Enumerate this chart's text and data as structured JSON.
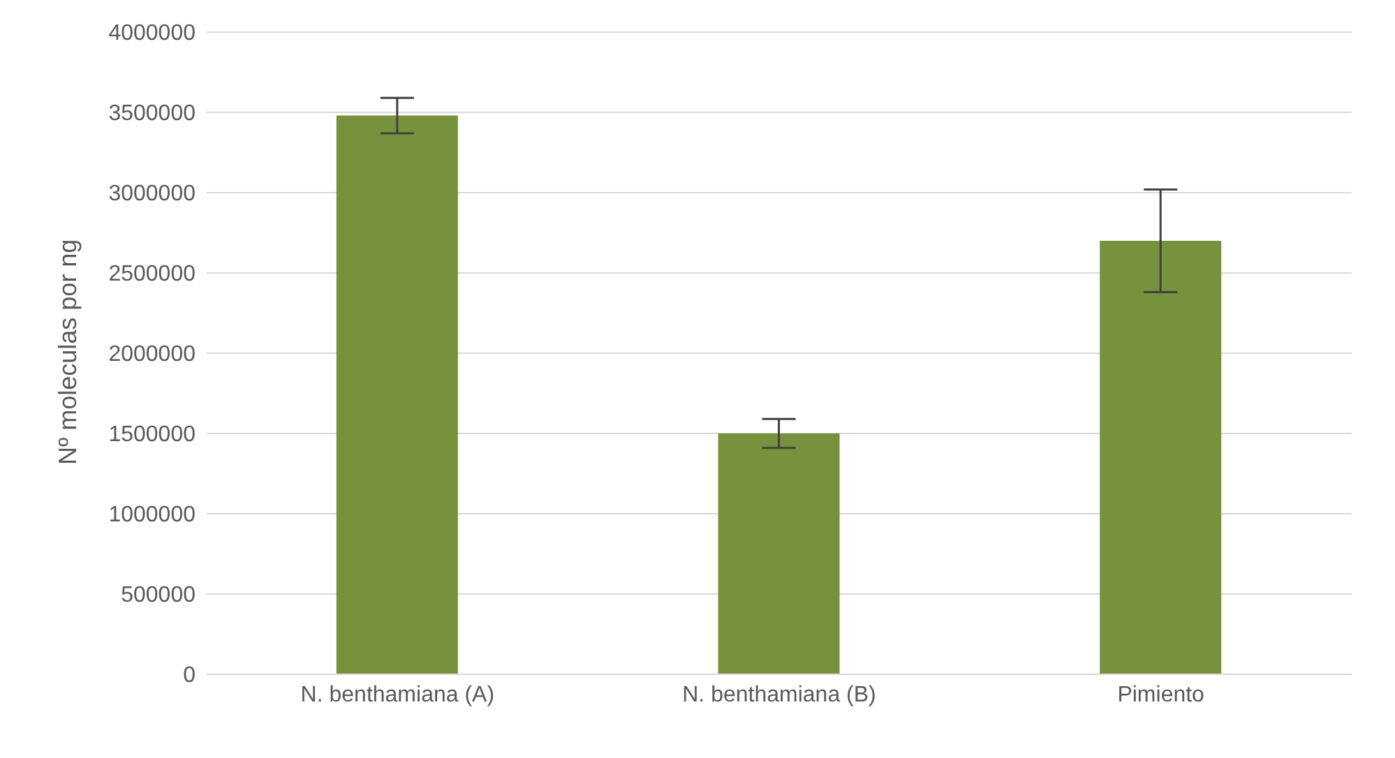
{
  "chart_data": {
    "type": "bar",
    "ylabel": "Nº moleculas por ng",
    "categories": [
      "N. benthamiana (A)",
      "N. benthamiana (B)",
      "Pimiento"
    ],
    "values": [
      3480000,
      1500000,
      2700000
    ],
    "errors": [
      110000,
      90000,
      320000
    ],
    "color": "#76923c",
    "ylim": [
      0,
      4000000
    ],
    "yticks": [
      0,
      500000,
      1000000,
      1500000,
      2000000,
      2500000,
      3000000,
      3500000,
      4000000
    ],
    "grid": "y"
  }
}
